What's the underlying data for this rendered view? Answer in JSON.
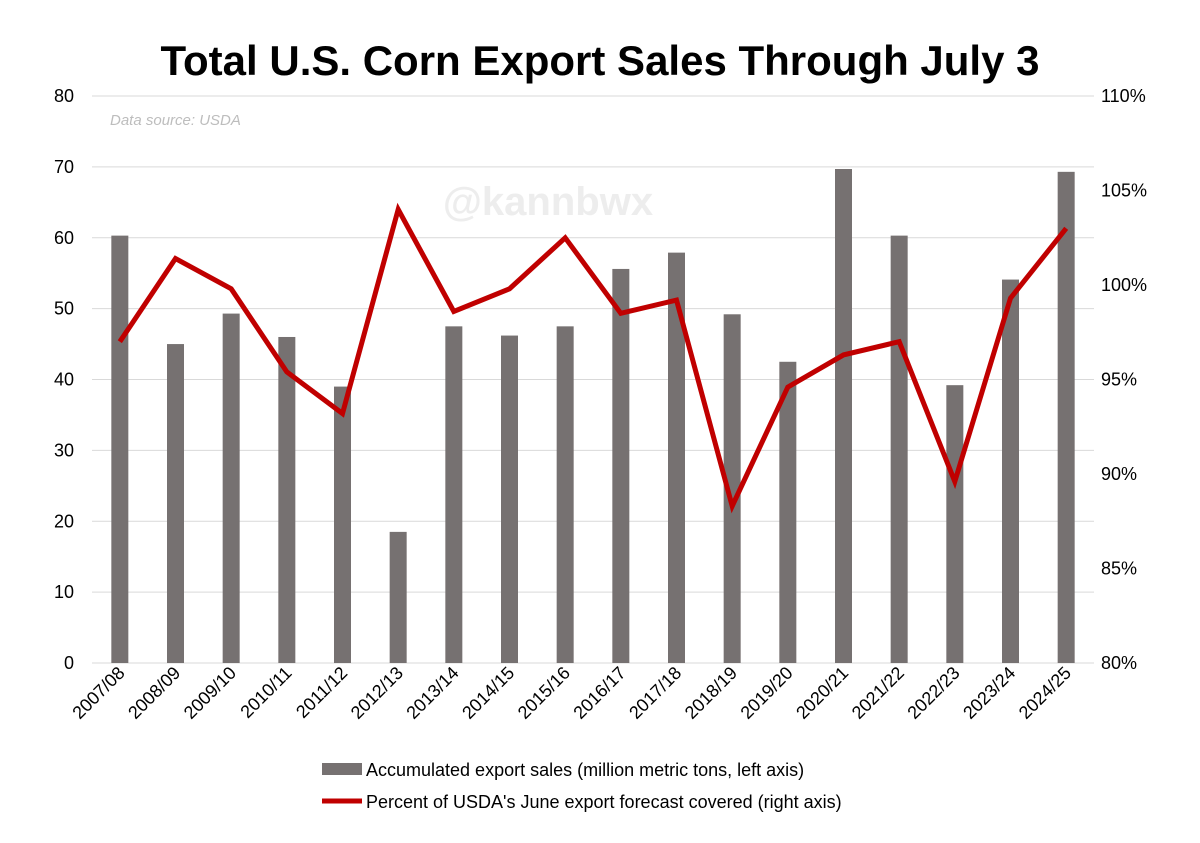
{
  "chart_data": {
    "type": "bar",
    "title": "Total U.S. Corn Export Sales Through July 3",
    "source_note": "Data source: USDA",
    "watermark": "@kannbwx",
    "categories": [
      "2007/08",
      "2008/09",
      "2009/10",
      "2010/11",
      "2011/12",
      "2012/13",
      "2013/14",
      "2014/15",
      "2015/16",
      "2016/17",
      "2017/18",
      "2018/19",
      "2019/20",
      "2020/21",
      "2021/22",
      "2022/23",
      "2023/24",
      "2024/25"
    ],
    "series": [
      {
        "name": "Accumulated export sales (million metric tons, left axis)",
        "type": "bar",
        "axis": "left",
        "color": "#767171",
        "values": [
          60.3,
          45.0,
          49.3,
          46.0,
          39.0,
          18.5,
          47.5,
          46.2,
          47.5,
          55.6,
          57.9,
          49.2,
          42.5,
          69.7,
          60.3,
          39.2,
          54.1,
          69.3
        ]
      },
      {
        "name": "Percent of USDA's June export forecast covered (right axis)",
        "type": "line",
        "axis": "right",
        "color": "#c00000",
        "values": [
          97.0,
          101.4,
          99.8,
          95.4,
          93.2,
          104.0,
          98.6,
          99.8,
          102.5,
          98.5,
          99.2,
          88.3,
          94.6,
          96.3,
          97.0,
          89.6,
          99.3,
          103.0
        ]
      }
    ],
    "y_left": {
      "min": 0,
      "max": 80,
      "step": 10,
      "tick_labels": [
        "0",
        "10",
        "20",
        "30",
        "40",
        "50",
        "60",
        "70",
        "80"
      ]
    },
    "y_right": {
      "min": 80,
      "max": 110,
      "step": 5,
      "tick_labels": [
        "80%",
        "85%",
        "90%",
        "95%",
        "100%",
        "105%",
        "110%"
      ]
    },
    "grid": true,
    "legend_position": "bottom"
  }
}
